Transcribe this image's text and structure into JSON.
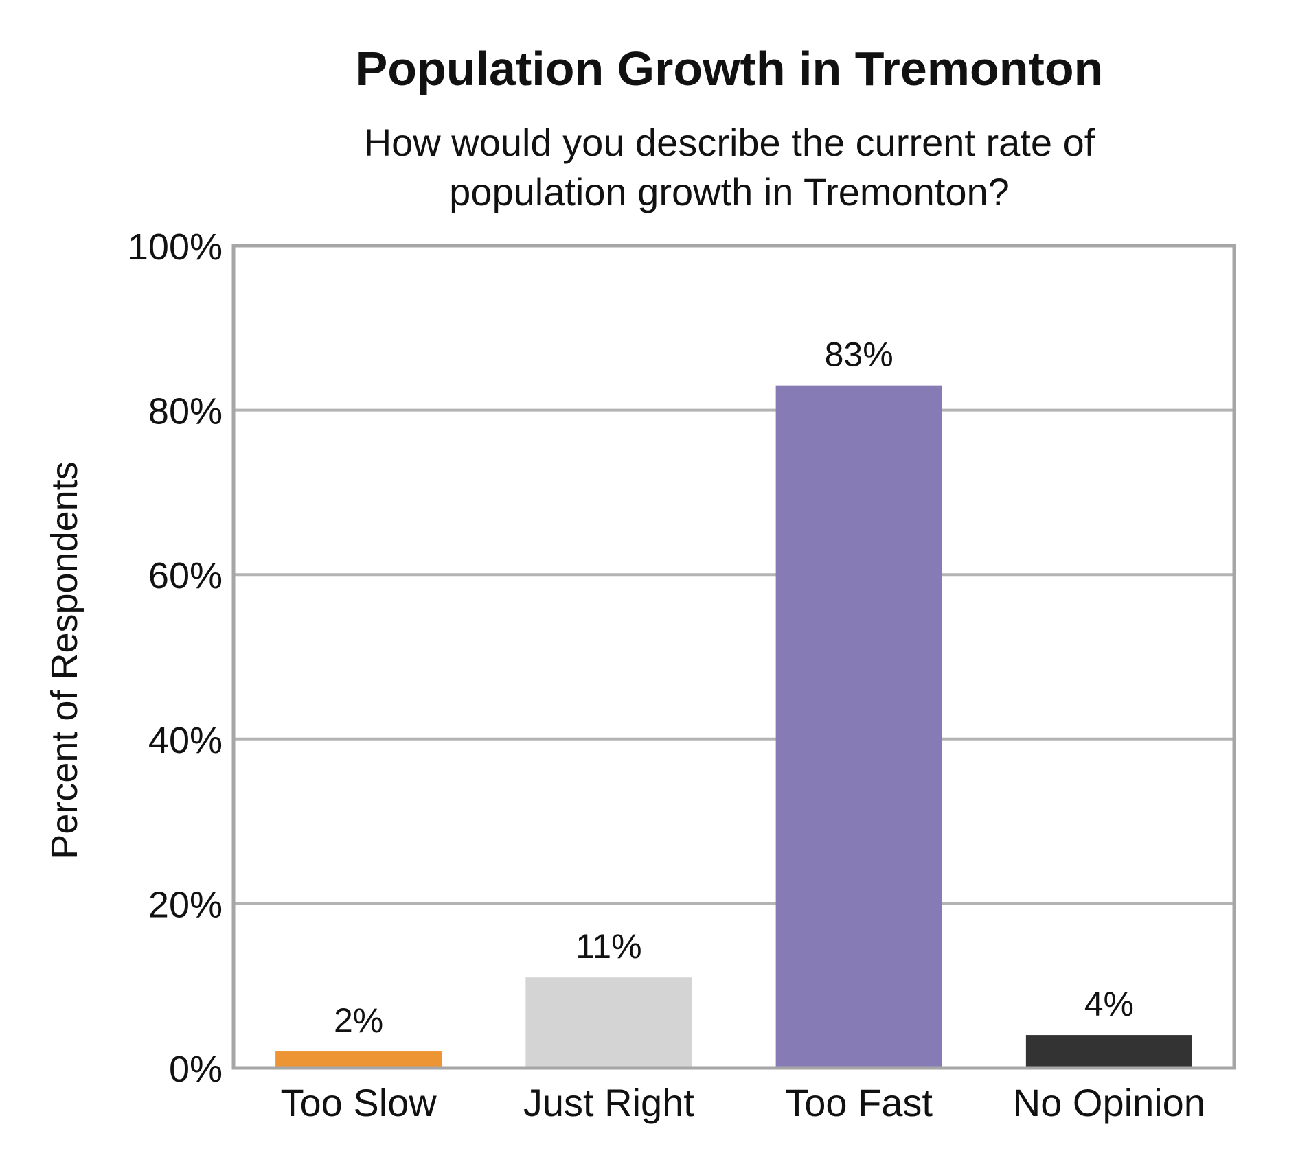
{
  "chart_data": {
    "type": "bar",
    "title": "Population Growth in Tremonton",
    "subtitle": [
      "How would you describe the current rate of",
      "population growth in Tremonton?"
    ],
    "ylabel": "Percent of Respondents",
    "xlabel": "",
    "ylim": [
      0,
      100
    ],
    "yticks": [
      0,
      20,
      40,
      60,
      80,
      100
    ],
    "ytick_labels": [
      "0%",
      "20%",
      "40%",
      "60%",
      "80%",
      "100%"
    ],
    "categories": [
      "Too Slow",
      "Just Right",
      "Too Fast",
      "No Opinion"
    ],
    "values": [
      2,
      11,
      83,
      4
    ],
    "data_labels": [
      "2%",
      "11%",
      "83%",
      "4%"
    ],
    "colors": [
      "#ED9535",
      "#D4D4D4",
      "#877BB5",
      "#333333"
    ],
    "grid": true,
    "legend": "none"
  },
  "styles": {
    "grid_color": "#B3B3B3",
    "frame_color": "#A6A6A6"
  }
}
